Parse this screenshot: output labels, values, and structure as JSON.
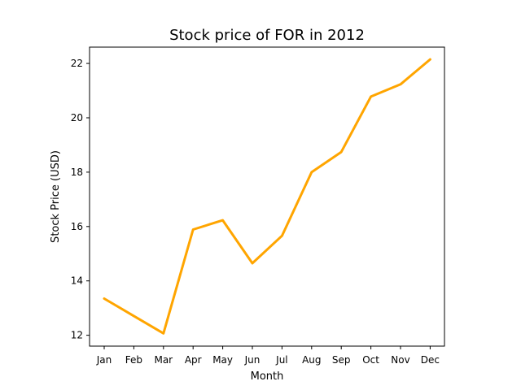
{
  "chart_data": {
    "type": "line",
    "title": "Stock price of FOR in 2012",
    "xlabel": "Month",
    "ylabel": "Stock Price (USD)",
    "categories": [
      "Jan",
      "Feb",
      "Mar",
      "Apr",
      "May",
      "Jun",
      "Jul",
      "Aug",
      "Sep",
      "Oct",
      "Nov",
      "Dec"
    ],
    "series": [
      {
        "values": [
          13.35,
          12.71,
          12.07,
          15.89,
          16.23,
          14.65,
          15.66,
          18.0,
          18.74,
          20.78,
          21.23,
          22.15
        ],
        "color": "#FFA500"
      }
    ],
    "yticks": [
      12,
      14,
      16,
      18,
      20,
      22
    ],
    "ylim": [
      11.6,
      22.6
    ],
    "grid": false,
    "legend": "none"
  }
}
